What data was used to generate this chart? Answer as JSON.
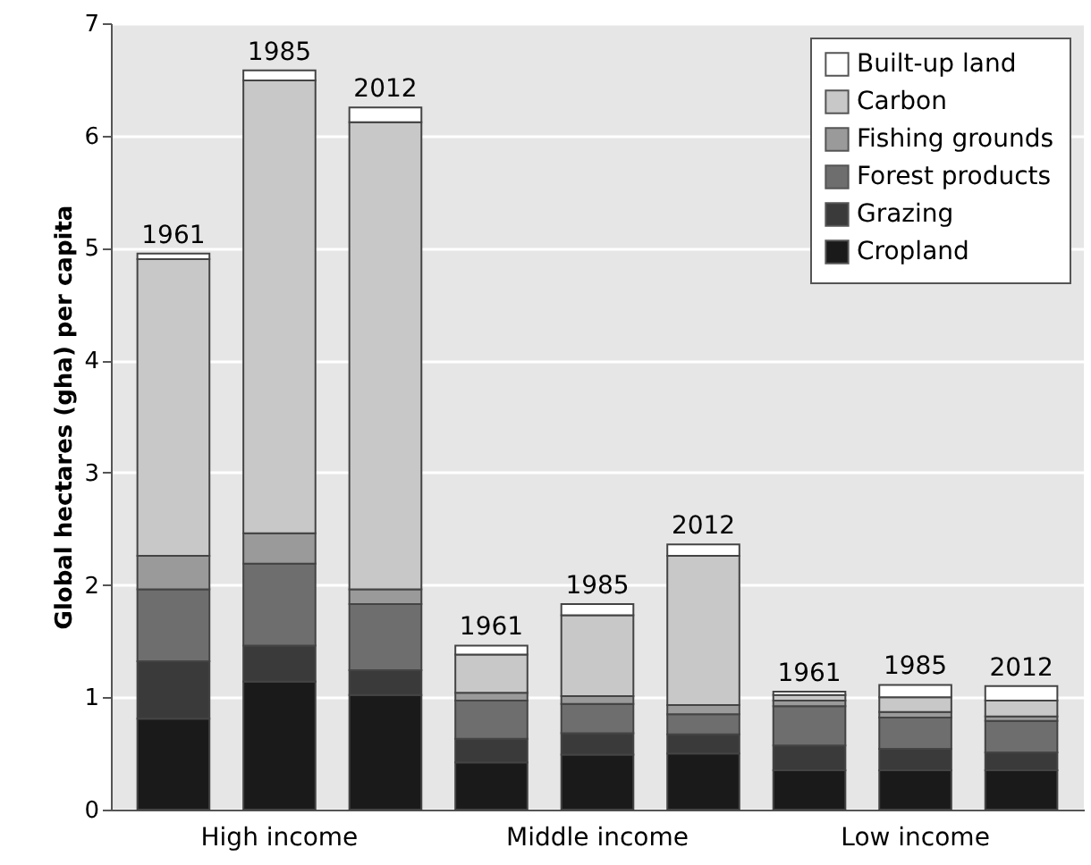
{
  "chart_data": {
    "type": "bar",
    "stacked": true,
    "ylabel": "Global hectares (gha) per capita",
    "categories": [
      "1961",
      "1985",
      "2012",
      "1961",
      "1985",
      "2012",
      "1961",
      "1985",
      "2012"
    ],
    "annotations": [
      "High income",
      "Middle income",
      "Low income"
    ],
    "series": [
      {
        "name": "Cropland",
        "color": "#1a1a1a",
        "values": [
          0.81,
          1.14,
          1.02,
          0.42,
          0.49,
          0.5,
          0.35,
          0.35,
          0.35
        ]
      },
      {
        "name": "Grazing",
        "color": "#3a3a3a",
        "values": [
          0.51,
          0.32,
          0.22,
          0.21,
          0.19,
          0.17,
          0.22,
          0.19,
          0.16
        ]
      },
      {
        "name": "Forest products",
        "color": "#6e6e6e",
        "values": [
          0.64,
          0.73,
          0.59,
          0.34,
          0.26,
          0.18,
          0.35,
          0.28,
          0.28
        ]
      },
      {
        "name": "Fishing grounds",
        "color": "#9a9a9a",
        "values": [
          0.3,
          0.27,
          0.13,
          0.07,
          0.07,
          0.08,
          0.05,
          0.05,
          0.04
        ]
      },
      {
        "name": "Carbon",
        "color": "#c8c8c8",
        "values": [
          2.64,
          4.03,
          4.16,
          0.34,
          0.72,
          1.33,
          0.05,
          0.13,
          0.14
        ]
      },
      {
        "name": "Built-up land",
        "color": "#ffffff",
        "values": [
          0.05,
          0.09,
          0.13,
          0.08,
          0.1,
          0.1,
          0.03,
          0.11,
          0.13
        ]
      }
    ],
    "ylim": [
      0,
      7
    ],
    "yticks": [
      0,
      1,
      2,
      3,
      4,
      5,
      6,
      7
    ],
    "grid": "y",
    "legend": "top right"
  }
}
